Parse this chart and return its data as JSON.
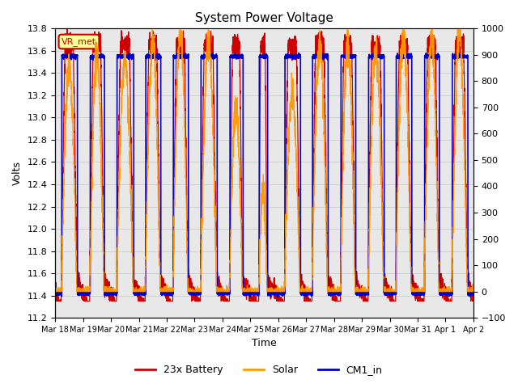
{
  "title": "System Power Voltage",
  "xlabel": "Time",
  "ylabel": "Volts",
  "ylim_left": [
    11.2,
    13.8
  ],
  "ylim_right": [
    -100,
    1000
  ],
  "yticks_left": [
    11.2,
    11.4,
    11.6,
    11.8,
    12.0,
    12.2,
    12.4,
    12.6,
    12.8,
    13.0,
    13.2,
    13.4,
    13.6,
    13.8
  ],
  "yticks_right": [
    -100,
    0,
    100,
    200,
    300,
    400,
    500,
    600,
    700,
    800,
    900,
    1000
  ],
  "annotation_text": "VR_met",
  "annotation_color": "#cc0000",
  "annotation_bg": "#ffff99",
  "legend_entries": [
    {
      "label": "23x Battery",
      "color": "#cc0000"
    },
    {
      "label": "Solar",
      "color": "#ff9900"
    },
    {
      "label": "CM1_in",
      "color": "#0000cc"
    }
  ],
  "n_days": 15,
  "xtick_labels": [
    "Mar 18",
    "Mar 19",
    "Mar 20",
    "Mar 21",
    "Mar 22",
    "Mar 23",
    "Mar 24",
    "Mar 25",
    "Mar 26",
    "Mar 27",
    "Mar 28",
    "Mar 29",
    "Mar 30",
    "Mar 31",
    "Apr 1",
    "Apr 2"
  ],
  "xtick_positions": [
    0,
    1,
    2,
    3,
    4,
    5,
    6,
    7,
    8,
    9,
    10,
    11,
    12,
    13,
    14,
    15
  ],
  "grid_color": "#cccccc",
  "bg_color": "#e8e8e8",
  "seed": 12345
}
